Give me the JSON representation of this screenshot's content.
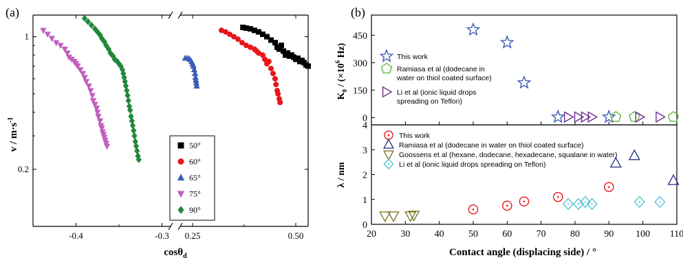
{
  "chart_data": [
    {
      "panel_label": "(a)",
      "type": "scatter",
      "xlabel": "cosθ",
      "xlabel_sub": "d",
      "ylabel": "v / m·s",
      "ylabel_sup": "-1",
      "yscale": "log",
      "ylim": [
        0.1,
        1.3
      ],
      "xaxis_break": true,
      "xlim_left": [
        -0.45,
        -0.29
      ],
      "xlim_right": [
        0.22,
        0.53
      ],
      "xticks": [
        "-0.4",
        "-0.3",
        "0.25",
        "0.50"
      ],
      "yticks": [
        "1",
        "0.2"
      ],
      "legend_position": "right-middle",
      "series": [
        {
          "name": "50°",
          "color": "#000000",
          "marker": "square",
          "points": [
            [
              0.372,
              1.12
            ],
            [
              0.38,
              1.11
            ],
            [
              0.39,
              1.1
            ],
            [
              0.4,
              1.08
            ],
            [
              0.41,
              1.06
            ],
            [
              0.42,
              1.03
            ],
            [
              0.43,
              1.0
            ],
            [
              0.44,
              0.96
            ],
            [
              0.45,
              0.93
            ],
            [
              0.455,
              0.88
            ],
            [
              0.46,
              0.86
            ],
            [
              0.465,
              0.9
            ],
            [
              0.47,
              0.84
            ],
            [
              0.475,
              0.8
            ],
            [
              0.48,
              0.82
            ],
            [
              0.485,
              0.79
            ],
            [
              0.49,
              0.8
            ],
            [
              0.495,
              0.78
            ],
            [
              0.5,
              0.76
            ],
            [
              0.505,
              0.77
            ],
            [
              0.51,
              0.74
            ],
            [
              0.515,
              0.75
            ],
            [
              0.52,
              0.73
            ],
            [
              0.525,
              0.71
            ],
            [
              0.53,
              0.7
            ]
          ]
        },
        {
          "name": "60°",
          "color": "#e8161b",
          "marker": "circle",
          "points": [
            [
              0.32,
              1.08
            ],
            [
              0.33,
              1.06
            ],
            [
              0.34,
              1.03
            ],
            [
              0.35,
              1.0
            ],
            [
              0.36,
              0.97
            ],
            [
              0.37,
              0.93
            ],
            [
              0.38,
              0.9
            ],
            [
              0.39,
              0.88
            ],
            [
              0.4,
              0.86
            ],
            [
              0.405,
              0.84
            ],
            [
              0.41,
              0.82
            ],
            [
              0.42,
              0.8
            ],
            [
              0.425,
              0.76
            ],
            [
              0.43,
              0.72
            ],
            [
              0.435,
              0.74
            ],
            [
              0.44,
              0.68
            ],
            [
              0.445,
              0.64
            ],
            [
              0.45,
              0.6
            ],
            [
              0.452,
              0.56
            ],
            [
              0.455,
              0.52
            ],
            [
              0.457,
              0.5
            ],
            [
              0.46,
              0.47
            ],
            [
              0.462,
              0.45
            ]
          ]
        },
        {
          "name": "65°",
          "color": "#3b5cb8",
          "marker": "triangle-up",
          "points": [
            [
              0.232,
              0.77
            ],
            [
              0.238,
              0.77
            ],
            [
              0.243,
              0.76
            ],
            [
              0.247,
              0.74
            ],
            [
              0.25,
              0.72
            ],
            [
              0.252,
              0.7
            ],
            [
              0.254,
              0.67
            ],
            [
              0.256,
              0.64
            ],
            [
              0.257,
              0.61
            ],
            [
              0.258,
              0.59
            ],
            [
              0.259,
              0.57
            ],
            [
              0.26,
              0.55
            ]
          ]
        },
        {
          "name": "75°",
          "color": "#c25ec0",
          "marker": "triangle-down",
          "points": [
            [
              -0.438,
              1.08
            ],
            [
              -0.433,
              1.03
            ],
            [
              -0.428,
              0.98
            ],
            [
              -0.423,
              0.93
            ],
            [
              -0.418,
              0.9
            ],
            [
              -0.413,
              0.86
            ],
            [
              -0.41,
              0.82
            ],
            [
              -0.408,
              0.78
            ],
            [
              -0.405,
              0.76
            ],
            [
              -0.402,
              0.74
            ],
            [
              -0.4,
              0.72
            ],
            [
              -0.398,
              0.7
            ],
            [
              -0.395,
              0.67
            ],
            [
              -0.392,
              0.64
            ],
            [
              -0.39,
              0.61
            ],
            [
              -0.388,
              0.58
            ],
            [
              -0.385,
              0.55
            ],
            [
              -0.383,
              0.52
            ],
            [
              -0.381,
              0.49
            ],
            [
              -0.38,
              0.46
            ],
            [
              -0.378,
              0.44
            ],
            [
              -0.376,
              0.42
            ],
            [
              -0.375,
              0.4
            ],
            [
              -0.374,
              0.38
            ],
            [
              -0.372,
              0.36
            ],
            [
              -0.371,
              0.34
            ],
            [
              -0.37,
              0.33
            ],
            [
              -0.369,
              0.315
            ],
            [
              -0.368,
              0.305
            ],
            [
              -0.367,
              0.295
            ],
            [
              -0.366,
              0.285
            ],
            [
              -0.365,
              0.275
            ],
            [
              -0.364,
              0.265
            ]
          ]
        },
        {
          "name": "90°",
          "color": "#21883b",
          "marker": "diamond",
          "points": [
            [
              -0.39,
              1.25
            ],
            [
              -0.386,
              1.2
            ],
            [
              -0.382,
              1.15
            ],
            [
              -0.378,
              1.1
            ],
            [
              -0.375,
              1.06
            ],
            [
              -0.372,
              1.02
            ],
            [
              -0.37,
              0.98
            ],
            [
              -0.367,
              0.94
            ],
            [
              -0.365,
              0.9
            ],
            [
              -0.362,
              0.86
            ],
            [
              -0.36,
              0.82
            ],
            [
              -0.357,
              0.79
            ],
            [
              -0.355,
              0.76
            ],
            [
              -0.352,
              0.74
            ],
            [
              -0.35,
              0.72
            ],
            [
              -0.348,
              0.7
            ],
            [
              -0.346,
              0.67
            ],
            [
              -0.345,
              0.64
            ],
            [
              -0.344,
              0.61
            ],
            [
              -0.343,
              0.58
            ],
            [
              -0.342,
              0.55
            ],
            [
              -0.341,
              0.52
            ],
            [
              -0.34,
              0.49
            ],
            [
              -0.339,
              0.46
            ],
            [
              -0.338,
              0.43
            ],
            [
              -0.337,
              0.41
            ],
            [
              -0.336,
              0.38
            ],
            [
              -0.335,
              0.36
            ],
            [
              -0.334,
              0.34
            ],
            [
              -0.333,
              0.32
            ],
            [
              -0.332,
              0.3
            ],
            [
              -0.331,
              0.28
            ],
            [
              -0.33,
              0.265
            ],
            [
              -0.329,
              0.25
            ],
            [
              -0.328,
              0.235
            ],
            [
              -0.327,
              0.225
            ]
          ]
        }
      ]
    },
    {
      "panel_label": "(b)",
      "type": "scatter",
      "subplot": "top",
      "ylabel": "K",
      "ylabel_sub": "0",
      "ylabel_rest": " / (×10",
      "ylabel_sup": "6",
      "ylabel_end": " Hz)",
      "xlim": [
        20,
        110
      ],
      "ylim": [
        -40,
        560
      ],
      "yticks": [
        0,
        150,
        300,
        450
      ],
      "legend_position": "top-left",
      "series": [
        {
          "name": "This work",
          "color": "#3b5cb8",
          "marker": "star",
          "points": [
            [
              50,
              480
            ],
            [
              60,
              410
            ],
            [
              65,
              190
            ],
            [
              75,
              3
            ],
            [
              90,
              3
            ]
          ]
        },
        {
          "name": "Ramiasa et al (dodecane in water on thiol coated surface)",
          "legend_lines": [
            "Ramiasa et al (dodecane in",
            "water on thiol coated surface)"
          ],
          "color": "#62b33f",
          "marker": "pentagon",
          "points": [
            [
              92,
              3
            ],
            [
              97.5,
              3
            ],
            [
              109,
              3
            ]
          ]
        },
        {
          "name": "Li et al (ionic liquid drops spreading on Teflon)",
          "legend_lines": [
            "Li et al (ionic liquid drops",
            "spreading on Teflon)"
          ],
          "color": "#6a2f8f",
          "marker": "triangle-right",
          "points": [
            [
              78,
              3
            ],
            [
              81,
              3
            ],
            [
              83,
              3
            ],
            [
              85,
              3
            ],
            [
              99,
              3
            ],
            [
              105,
              3
            ]
          ]
        }
      ]
    },
    {
      "panel_label": "",
      "type": "scatter",
      "subplot": "bottom",
      "ylabel": "λ / nm",
      "xlabel": "Contact angle (displacing side) / °",
      "xlim": [
        20,
        110
      ],
      "ylim": [
        0,
        4
      ],
      "xticks": [
        20,
        30,
        40,
        50,
        60,
        70,
        80,
        90,
        100,
        110
      ],
      "yticks": [
        0,
        1,
        2,
        3,
        4
      ],
      "legend_position": "top-left",
      "series": [
        {
          "name": "This work",
          "color": "#e8161b",
          "marker": "circle-dot",
          "points": [
            [
              50,
              0.6
            ],
            [
              60,
              0.75
            ],
            [
              65,
              0.92
            ],
            [
              75,
              1.1
            ],
            [
              90,
              1.5
            ]
          ]
        },
        {
          "name": "Ramiasa et al (dodecane in water on thiol coated surface)",
          "color": "#2d3a8c",
          "marker": "triangle-up",
          "points": [
            [
              92,
              2.45
            ],
            [
              97.5,
              2.75
            ],
            [
              109,
              1.75
            ]
          ]
        },
        {
          "name": "Goossens et al (hexane, dodecane, hexadecane, squalane in water)",
          "color": "#7d7a28",
          "marker": "triangle-down",
          "points": [
            [
              24,
              0.35
            ],
            [
              26.5,
              0.35
            ],
            [
              31.5,
              0.35
            ],
            [
              32.5,
              0.38
            ]
          ]
        },
        {
          "name": "Li et al (ionic liquid drops spreading on Teflon)",
          "color": "#56c4d8",
          "marker": "diamond-dot",
          "points": [
            [
              78,
              0.82
            ],
            [
              81,
              0.82
            ],
            [
              83,
              0.9
            ],
            [
              85,
              0.82
            ],
            [
              99,
              0.9
            ],
            [
              105,
              0.9
            ]
          ]
        }
      ]
    }
  ]
}
